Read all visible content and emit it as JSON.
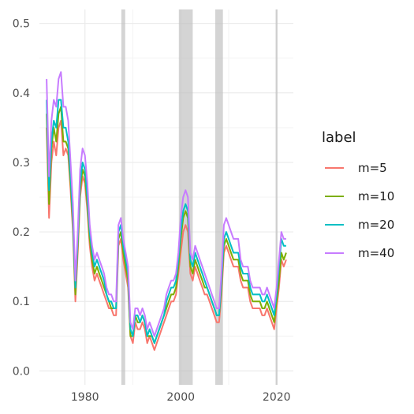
{
  "chart_data": {
    "type": "line",
    "title": "",
    "xlabel": "",
    "ylabel": "",
    "xlim": [
      1970.5,
      2023.5
    ],
    "ylim": [
      -0.02,
      0.52
    ],
    "x_ticks": [
      1980,
      2000,
      2020
    ],
    "x_tick_labels": [
      "1980",
      "2000",
      "2020"
    ],
    "y_ticks": [
      0.0,
      0.1,
      0.2,
      0.3,
      0.4,
      0.5
    ],
    "y_tick_labels": [
      "0.0",
      "0.1",
      "0.2",
      "0.3",
      "0.4",
      "0.5"
    ],
    "grid": true,
    "recession_bands": [
      [
        1987.6,
        1988.4
      ],
      [
        1999.6,
        2002.5
      ],
      [
        2007.2,
        2008.8
      ],
      [
        2019.8,
        2020.2
      ]
    ],
    "legend": {
      "title": "label",
      "position": "right"
    },
    "x": [
      1972.0,
      1972.5,
      1973.0,
      1973.5,
      1974.0,
      1974.5,
      1975.0,
      1975.5,
      1976.0,
      1976.5,
      1977.0,
      1977.5,
      1978.0,
      1978.5,
      1979.0,
      1979.5,
      1980.0,
      1980.5,
      1981.0,
      1981.5,
      1982.0,
      1982.5,
      1983.0,
      1983.5,
      1984.0,
      1984.5,
      1985.0,
      1985.5,
      1986.0,
      1986.5,
      1987.0,
      1987.5,
      1988.0,
      1988.5,
      1989.0,
      1989.5,
      1990.0,
      1990.5,
      1991.0,
      1991.5,
      1992.0,
      1992.5,
      1993.0,
      1993.5,
      1994.0,
      1994.5,
      1995.0,
      1995.5,
      1996.0,
      1996.5,
      1997.0,
      1997.5,
      1998.0,
      1998.5,
      1999.0,
      1999.5,
      2000.0,
      2000.5,
      2001.0,
      2001.5,
      2002.0,
      2002.5,
      2003.0,
      2003.5,
      2004.0,
      2004.5,
      2005.0,
      2005.5,
      2006.0,
      2006.5,
      2007.0,
      2007.5,
      2008.0,
      2008.5,
      2009.0,
      2009.5,
      2010.0,
      2010.5,
      2011.0,
      2011.5,
      2012.0,
      2012.5,
      2013.0,
      2013.5,
      2014.0,
      2014.5,
      2015.0,
      2015.5,
      2016.0,
      2016.5,
      2017.0,
      2017.5,
      2018.0,
      2018.5,
      2019.0,
      2019.5,
      2020.0,
      2020.5,
      2021.0,
      2021.5,
      2022.0
    ],
    "series": [
      {
        "name": "m=5",
        "color": "#F8766D",
        "values": [
          0.35,
          0.22,
          0.3,
          0.33,
          0.31,
          0.35,
          0.36,
          0.31,
          0.32,
          0.31,
          0.26,
          0.2,
          0.1,
          0.17,
          0.25,
          0.28,
          0.27,
          0.23,
          0.18,
          0.15,
          0.13,
          0.14,
          0.13,
          0.12,
          0.11,
          0.1,
          0.09,
          0.09,
          0.08,
          0.08,
          0.18,
          0.19,
          0.16,
          0.14,
          0.12,
          0.05,
          0.04,
          0.07,
          0.06,
          0.06,
          0.07,
          0.06,
          0.04,
          0.05,
          0.04,
          0.03,
          0.04,
          0.05,
          0.06,
          0.07,
          0.08,
          0.09,
          0.1,
          0.1,
          0.11,
          0.14,
          0.17,
          0.2,
          0.21,
          0.2,
          0.14,
          0.13,
          0.15,
          0.14,
          0.13,
          0.12,
          0.11,
          0.11,
          0.1,
          0.09,
          0.08,
          0.07,
          0.07,
          0.11,
          0.17,
          0.18,
          0.17,
          0.16,
          0.15,
          0.15,
          0.15,
          0.13,
          0.12,
          0.12,
          0.12,
          0.1,
          0.09,
          0.09,
          0.09,
          0.09,
          0.08,
          0.08,
          0.09,
          0.08,
          0.07,
          0.06,
          0.09,
          0.12,
          0.16,
          0.15,
          0.16
        ]
      },
      {
        "name": "m=10",
        "color": "#7CAE00",
        "values": [
          0.37,
          0.24,
          0.32,
          0.35,
          0.33,
          0.37,
          0.38,
          0.33,
          0.33,
          0.32,
          0.27,
          0.21,
          0.11,
          0.18,
          0.26,
          0.29,
          0.28,
          0.24,
          0.19,
          0.16,
          0.14,
          0.15,
          0.14,
          0.13,
          0.12,
          0.11,
          0.1,
          0.09,
          0.09,
          0.09,
          0.19,
          0.2,
          0.17,
          0.15,
          0.13,
          0.05,
          0.05,
          0.08,
          0.07,
          0.07,
          0.08,
          0.07,
          0.05,
          0.05,
          0.05,
          0.04,
          0.05,
          0.06,
          0.07,
          0.08,
          0.09,
          0.1,
          0.11,
          0.11,
          0.12,
          0.15,
          0.19,
          0.22,
          0.23,
          0.22,
          0.15,
          0.14,
          0.16,
          0.15,
          0.14,
          0.13,
          0.12,
          0.12,
          0.11,
          0.1,
          0.09,
          0.08,
          0.08,
          0.12,
          0.18,
          0.19,
          0.18,
          0.17,
          0.16,
          0.16,
          0.16,
          0.14,
          0.13,
          0.13,
          0.13,
          0.11,
          0.1,
          0.1,
          0.1,
          0.1,
          0.09,
          0.09,
          0.1,
          0.09,
          0.08,
          0.07,
          0.1,
          0.13,
          0.17,
          0.16,
          0.17
        ]
      },
      {
        "name": "m=20",
        "color": "#00BFC4",
        "values": [
          0.39,
          0.26,
          0.33,
          0.36,
          0.35,
          0.39,
          0.39,
          0.35,
          0.35,
          0.33,
          0.28,
          0.22,
          0.12,
          0.19,
          0.27,
          0.3,
          0.29,
          0.25,
          0.2,
          0.17,
          0.15,
          0.16,
          0.15,
          0.14,
          0.13,
          0.11,
          0.1,
          0.1,
          0.09,
          0.09,
          0.2,
          0.21,
          0.18,
          0.16,
          0.14,
          0.06,
          0.05,
          0.08,
          0.08,
          0.07,
          0.08,
          0.07,
          0.05,
          0.06,
          0.05,
          0.04,
          0.05,
          0.06,
          0.07,
          0.08,
          0.1,
          0.11,
          0.12,
          0.12,
          0.13,
          0.16,
          0.2,
          0.23,
          0.24,
          0.23,
          0.16,
          0.15,
          0.17,
          0.16,
          0.15,
          0.14,
          0.13,
          0.12,
          0.11,
          0.1,
          0.09,
          0.08,
          0.08,
          0.13,
          0.19,
          0.2,
          0.19,
          0.18,
          0.17,
          0.17,
          0.17,
          0.15,
          0.14,
          0.14,
          0.14,
          0.12,
          0.11,
          0.11,
          0.11,
          0.11,
          0.1,
          0.1,
          0.11,
          0.1,
          0.09,
          0.08,
          0.11,
          0.15,
          0.19,
          0.18,
          0.18
        ]
      },
      {
        "name": "m=40",
        "color": "#C77CFF",
        "values": [
          0.42,
          0.28,
          0.36,
          0.39,
          0.38,
          0.42,
          0.43,
          0.38,
          0.38,
          0.36,
          0.3,
          0.24,
          0.13,
          0.2,
          0.29,
          0.32,
          0.31,
          0.27,
          0.21,
          0.18,
          0.16,
          0.17,
          0.16,
          0.15,
          0.14,
          0.12,
          0.11,
          0.11,
          0.1,
          0.1,
          0.21,
          0.22,
          0.19,
          0.17,
          0.15,
          0.07,
          0.06,
          0.09,
          0.09,
          0.08,
          0.09,
          0.08,
          0.06,
          0.07,
          0.06,
          0.05,
          0.06,
          0.07,
          0.08,
          0.09,
          0.11,
          0.12,
          0.13,
          0.13,
          0.14,
          0.17,
          0.22,
          0.25,
          0.26,
          0.25,
          0.17,
          0.16,
          0.18,
          0.17,
          0.16,
          0.15,
          0.14,
          0.13,
          0.12,
          0.11,
          0.1,
          0.09,
          0.09,
          0.14,
          0.21,
          0.22,
          0.21,
          0.2,
          0.19,
          0.19,
          0.19,
          0.16,
          0.15,
          0.15,
          0.15,
          0.13,
          0.12,
          0.12,
          0.12,
          0.12,
          0.11,
          0.11,
          0.12,
          0.11,
          0.1,
          0.09,
          0.12,
          0.16,
          0.2,
          0.19,
          0.19
        ]
      }
    ]
  }
}
